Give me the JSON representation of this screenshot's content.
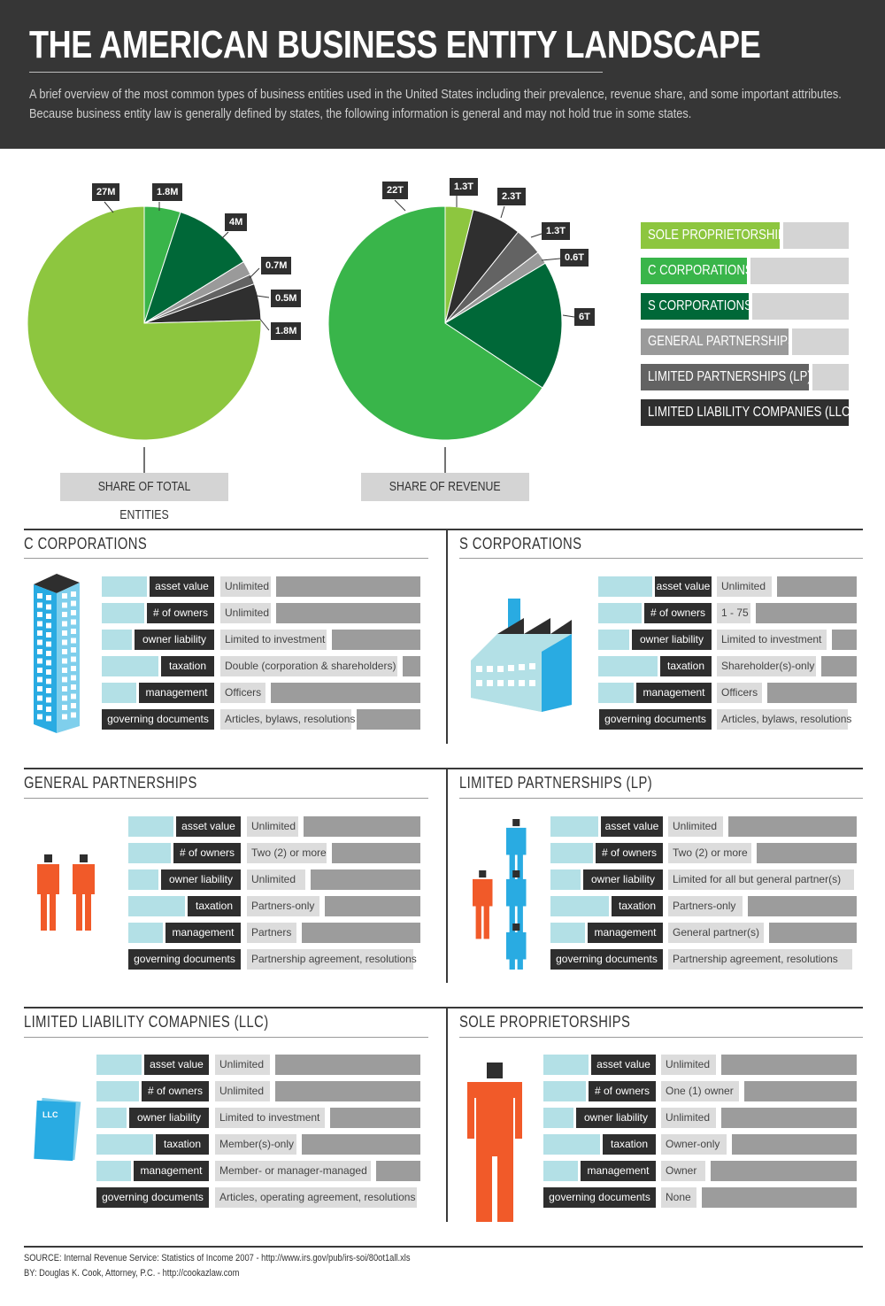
{
  "header": {
    "title": "THE AMERICAN BUSINESS ENTITY LANDSCAPE",
    "description_line1": "A brief overview of the most common types of business entities used in the United States including their prevalence, revenue share, and some important attributes.",
    "description_line2": "Because business entity law is generally defined by states, the following information is general and may not hold true  in some states."
  },
  "colors": {
    "sole_proprietorships": "#8dc63f",
    "c_corporations": "#39b54a",
    "s_corporations": "#006838",
    "general_partnerships": "#9a9a9a",
    "limited_partnerships": "#636363",
    "llc": "#2f2f2f",
    "attribute_blue": "#b3e0e6",
    "person_orange": "#f15a29",
    "person_blue": "#29abe2"
  },
  "chart_data": [
    {
      "type": "pie",
      "title": "SHARE OF TOTAL ENTITIES",
      "categories": [
        "C CORPORATIONS",
        "S CORPORATIONS",
        "GENERAL PARTNERSHIPS",
        "LIMITED PARTNERSHIPS (LP)",
        "LIMITED LIABILITY COMPANIES (LLC)",
        "SOLE PROPRIETORSHIPS"
      ],
      "values": [
        1.8,
        4,
        0.7,
        0.5,
        1.8,
        27
      ],
      "labels": [
        "1.8M",
        "4M",
        "0.7M",
        "0.5M",
        "1.8M",
        "27M"
      ]
    },
    {
      "type": "pie",
      "title": "SHARE OF REVENUE",
      "categories": [
        "SOLE PROPRIETORSHIPS",
        "LIMITED LIABILITY COMPANIES (LLC)",
        "LIMITED PARTNERSHIPS (LP)",
        "GENERAL PARTNERSHIPS",
        "S CORPORATIONS",
        "C CORPORATIONS"
      ],
      "values": [
        1.3,
        2.3,
        1.3,
        0.6,
        6,
        22
      ],
      "labels": [
        "1.3T",
        "2.3T",
        "1.3T",
        "0.6T",
        "6T",
        "22T"
      ]
    }
  ],
  "legend": [
    {
      "label": "SOLE  PROPRIETORSHIPS",
      "fill": 0.67
    },
    {
      "label": "C  CORPORATIONS",
      "fill": 0.51
    },
    {
      "label": "S  CORPORATIONS",
      "fill": 0.52
    },
    {
      "label": "GENERAL  PARTNERSHIPS",
      "fill": 0.71
    },
    {
      "label": "LIMITED  PARTNERSHIPS  (LP)",
      "fill": 0.81
    },
    {
      "label": "LIMITED  LIABILITY  COMPANIES  (LLC)",
      "fill": 1.0
    }
  ],
  "attribute_keys": [
    "asset value",
    "# of owners",
    "owner liability",
    "taxation",
    "management",
    "governing documents"
  ],
  "sections": [
    {
      "title": "C  CORPORATIONS",
      "values": [
        "Unlimited",
        "Unlimited",
        "Limited to investment",
        "Double (corporation & shareholders)",
        "Officers",
        "Articles, bylaws, resolutions"
      ]
    },
    {
      "title": "S  CORPORATIONS",
      "values": [
        "Unlimited",
        "1 - 75",
        "Limited to investment",
        "Shareholder(s)-only",
        "Officers",
        "Articles, bylaws, resolutions"
      ]
    },
    {
      "title": "GENERAL  PARTNERSHIPS",
      "values": [
        "Unlimited",
        "Two (2) or more",
        "Unlimited",
        "Partners-only",
        "Partners",
        "Partnership agreement, resolutions"
      ]
    },
    {
      "title": "LIMITED  PARTNERSHIPS  (LP)",
      "values": [
        "Unlimited",
        "Two (2) or more",
        "Limited for all but general partner(s)",
        "Partners-only",
        "General partner(s)",
        "Partnership agreement, resolutions"
      ]
    },
    {
      "title": "LIMITED  LIABILITY  COMAPNIES  (LLC)",
      "values": [
        "Unlimited",
        "Unlimited",
        "Limited to investment",
        "Member(s)-only",
        "Member- or manager-managed",
        "Articles, operating agreement, resolutions"
      ]
    },
    {
      "title": "SOLE  PROPRIETORSHIPS",
      "values": [
        "Unlimited",
        "One (1) owner",
        "Unlimited",
        "Owner-only",
        "Owner",
        "None"
      ]
    }
  ],
  "llc_icon_text": "LLC",
  "footer": {
    "source": "SOURCE: Internal Revenue Service: Statistics of Income 2007 - http://www.irs.gov/pub/irs-soi/80ot1all.xls",
    "by": "BY: Douglas K. Cook, Attorney, P.C.  - http://cookazlaw.com"
  }
}
